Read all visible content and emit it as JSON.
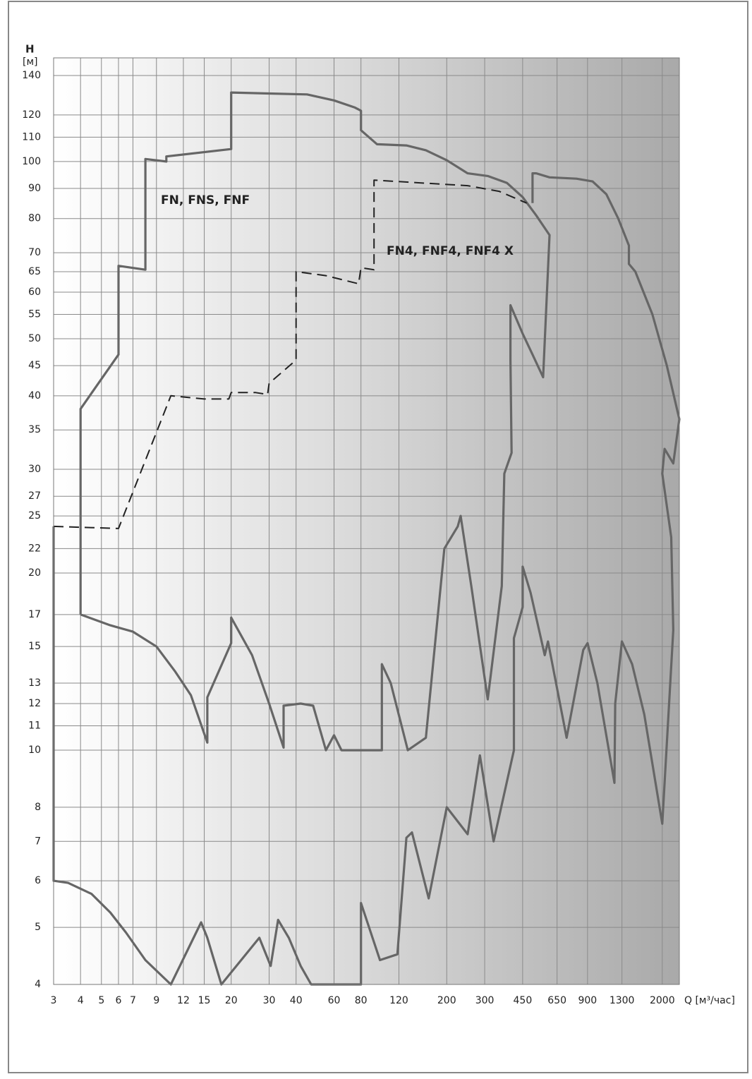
{
  "chart_data": {
    "type": "line",
    "y_label": "H",
    "y_unit": "[м]",
    "x_label": "Q [м³/час]",
    "log_x": true,
    "log_y": true,
    "grid": true,
    "xlim": [
      3,
      2400
    ],
    "ylim": [
      4,
      150
    ],
    "xticks": [
      3,
      4,
      5,
      6,
      7,
      9,
      12,
      15,
      20,
      30,
      40,
      60,
      80,
      120,
      200,
      300,
      450,
      650,
      900,
      1300,
      2000
    ],
    "yticks": [
      4,
      5,
      6,
      7,
      8,
      10,
      11,
      12,
      13,
      15,
      17,
      20,
      22,
      25,
      27,
      30,
      35,
      40,
      45,
      50,
      55,
      60,
      65,
      70,
      80,
      90,
      100,
      110,
      120,
      140
    ],
    "series": [
      {
        "name": "FN, FNS, FNF",
        "color": "#666666",
        "dashed": false,
        "x": [
          3,
          3,
          3.5,
          4.5,
          5.5,
          6.5,
          8,
          10.5,
          14.5,
          15.5,
          18,
          27,
          30.5,
          33,
          37,
          42,
          47,
          80,
          80,
          98,
          118,
          130,
          138,
          165,
          200,
          250,
          285,
          330,
          410,
          410,
          450,
          450,
          490,
          570,
          590,
          720,
          860,
          900,
          1000,
          1200,
          1210,
          1300,
          1450,
          1650,
          2000,
          2250,
          2200,
          2000,
          2050,
          2250,
          2400,
          2100,
          1800,
          1500,
          1400,
          1400,
          1250,
          1100,
          950,
          800,
          600,
          520,
          500,
          500,
          null,
          4,
          4,
          6,
          6,
          8,
          8,
          10,
          10,
          20,
          20,
          30,
          45,
          60,
          75,
          80,
          80,
          95,
          130,
          160,
          200,
          250,
          310,
          380,
          450,
          520,
          600,
          560,
          500,
          450,
          395,
          395,
          400,
          370,
          360,
          310,
          260,
          232,
          225,
          195,
          160,
          132,
          110,
          100,
          100,
          65,
          60,
          55,
          48,
          42,
          35,
          35,
          30,
          25,
          20,
          20,
          15.5,
          15.5,
          13,
          11,
          9,
          7,
          5.5,
          4
        ],
        "values": [
          24,
          6,
          5.95,
          5.7,
          5.3,
          4.9,
          4.4,
          4,
          5.1,
          4.8,
          4,
          4.8,
          4.3,
          5.15,
          4.8,
          4.3,
          4,
          4,
          5.5,
          4.4,
          4.5,
          7.1,
          7.25,
          5.6,
          8,
          7.2,
          9.8,
          7,
          10,
          15.5,
          17.5,
          20.5,
          18.5,
          14.5,
          15.3,
          10.5,
          14.8,
          15.2,
          13,
          8.8,
          12,
          15.3,
          14,
          11.5,
          7.5,
          16,
          23,
          29.5,
          32.5,
          30.7,
          36.5,
          45,
          55,
          65,
          67,
          72,
          80,
          88,
          92.5,
          93.5,
          94,
          95.5,
          95.5,
          85,
          null,
          17,
          38,
          47,
          66.5,
          65.5,
          101,
          100,
          102,
          105,
          131,
          130.5,
          130,
          127,
          123.5,
          122,
          113,
          107,
          106.5,
          104.5,
          100.5,
          95.5,
          94.5,
          92,
          87,
          81,
          75,
          43,
          47,
          51,
          57,
          46,
          32,
          29.5,
          19,
          12.2,
          19,
          25,
          24,
          22,
          10.5,
          10,
          13,
          14,
          10,
          10,
          10.6,
          10,
          11.9,
          12,
          11.9,
          10.1,
          12,
          14.5,
          16.8,
          15.2,
          12.3,
          10.3,
          12.4,
          13.6,
          15,
          15.9,
          16.3,
          17
        ]
      },
      {
        "name": "FN4, FNF4, FNF4 X",
        "color": "#222222",
        "dashed": true,
        "x": [
          3,
          6,
          10.5,
          15,
          19.5,
          20,
          26,
          29.5,
          30,
          40,
          40,
          55,
          78,
          80,
          92,
          92,
          150,
          250,
          350,
          470
        ],
        "values": [
          24,
          23.8,
          40,
          39.5,
          39.5,
          40.5,
          40.5,
          40.2,
          42,
          46,
          65,
          64,
          62,
          66,
          65.5,
          93,
          92,
          91,
          89,
          85
        ]
      }
    ]
  }
}
